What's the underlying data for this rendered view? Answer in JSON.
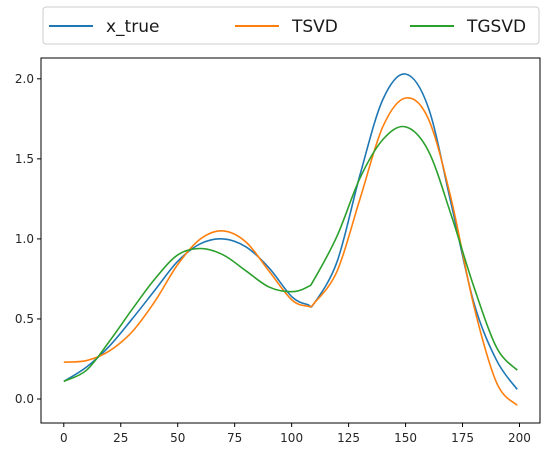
{
  "chart_data": {
    "type": "line",
    "title": "",
    "xlabel": "",
    "ylabel": "",
    "xlim": [
      -10,
      209
    ],
    "ylim": [
      -0.15,
      2.13
    ],
    "grid": false,
    "legend": {
      "placement": "top, outside plot",
      "columns": 3
    },
    "x_ticks": [
      0,
      25,
      50,
      75,
      100,
      125,
      150,
      175,
      200
    ],
    "x_tick_labels": [
      "0",
      "25",
      "50",
      "75",
      "100",
      "125",
      "150",
      "175",
      "200"
    ],
    "y_ticks": [
      0.0,
      0.5,
      1.0,
      1.5,
      2.0
    ],
    "y_tick_labels": [
      "0.0",
      "0.5",
      "1.0",
      "1.5",
      "2.0"
    ],
    "x": [
      0,
      10,
      20,
      30,
      40,
      50,
      60,
      70,
      80,
      90,
      100,
      107,
      110,
      120,
      130,
      140,
      150,
      160,
      170,
      180,
      190,
      199
    ],
    "series": [
      {
        "name": "x_true",
        "color": "#1f77b4",
        "values": [
          0.11,
          0.2,
          0.33,
          0.5,
          0.68,
          0.86,
          0.97,
          1.0,
          0.95,
          0.82,
          0.64,
          0.59,
          0.6,
          0.86,
          1.4,
          1.87,
          2.03,
          1.82,
          1.22,
          0.6,
          0.24,
          0.06
        ]
      },
      {
        "name": "TSVD",
        "color": "#ff7f0e",
        "values": [
          0.23,
          0.24,
          0.3,
          0.42,
          0.61,
          0.84,
          1.0,
          1.05,
          0.98,
          0.8,
          0.62,
          0.58,
          0.6,
          0.8,
          1.25,
          1.7,
          1.88,
          1.75,
          1.25,
          0.58,
          0.1,
          -0.04
        ]
      },
      {
        "name": "TGSVD",
        "color": "#2ca02c",
        "values": [
          0.11,
          0.18,
          0.36,
          0.56,
          0.75,
          0.9,
          0.94,
          0.9,
          0.8,
          0.7,
          0.67,
          0.7,
          0.75,
          1.02,
          1.38,
          1.62,
          1.7,
          1.55,
          1.15,
          0.7,
          0.32,
          0.18
        ]
      }
    ]
  }
}
